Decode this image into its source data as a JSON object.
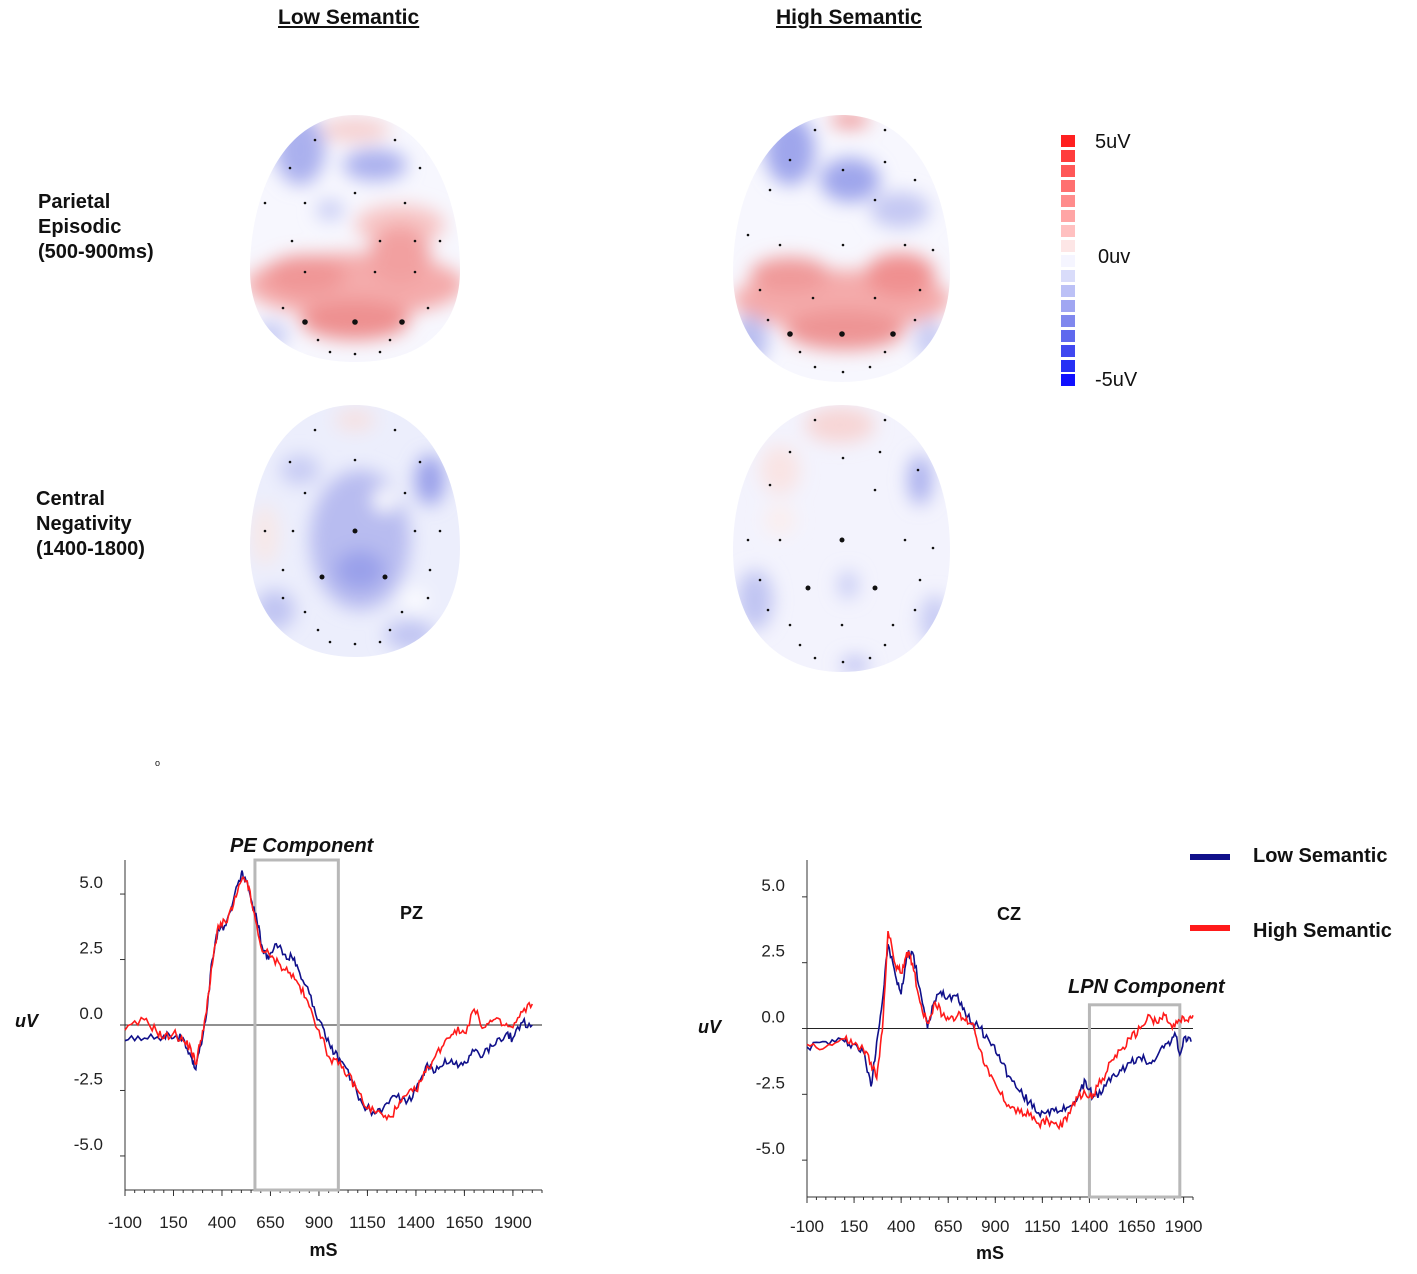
{
  "headers": {
    "low": "Low Semantic",
    "high": "High Semantic"
  },
  "rows": {
    "parietal": {
      "line1": "Parietal",
      "line2": "Episodic",
      "line3": "(500-900ms)"
    },
    "central": {
      "line1": "Central",
      "line2": "Negativity",
      "line3": "(1400-1800)"
    }
  },
  "colorbar": {
    "max": "5uV",
    "mid": "0uv",
    "min": "-5uV",
    "pos_color": "#ff1a1a",
    "neg_color": "#1a1aff"
  },
  "stray_mark": "o",
  "legend": {
    "low": "Low Semantic",
    "high": "High Semantic",
    "low_color": "#10108a",
    "high_color": "#ff1a1a"
  },
  "colors": {
    "box": "#b8b8b8",
    "axis": "#333333"
  },
  "chart_data": [
    {
      "type": "line",
      "title": "PZ",
      "annotation": "PE Component",
      "xlabel": "mS",
      "ylabel": "uV",
      "xlim": [
        -100,
        2050
      ],
      "ylim": [
        -6.3,
        6.3
      ],
      "xticks": [
        -100,
        150,
        400,
        650,
        900,
        1150,
        1400,
        1650,
        1900
      ],
      "xtick_labels": [
        "-100",
        "150",
        "400",
        "650",
        "900",
        "1150",
        "1400",
        "1650",
        "1900"
      ],
      "yticks": [
        5,
        2.5,
        0,
        -2.5,
        -5
      ],
      "ytick_labels": [
        "5.0",
        "2.5",
        "0.0",
        "-2.5",
        "-5.0"
      ],
      "box": {
        "x_start": 570,
        "x_end": 1000,
        "y_top": 6.3,
        "y_bottom": -6.3
      },
      "series": [
        {
          "name": "Low Semantic",
          "color": "#10108a",
          "points": [
            [
              -100,
              -0.6
            ],
            [
              0,
              -0.5
            ],
            [
              100,
              -0.4
            ],
            [
              150,
              -0.5
            ],
            [
              200,
              -0.5
            ],
            [
              240,
              -1.2
            ],
            [
              265,
              -1.7
            ],
            [
              290,
              -0.8
            ],
            [
              320,
              0.4
            ],
            [
              350,
              2.5
            ],
            [
              380,
              3.7
            ],
            [
              420,
              3.8
            ],
            [
              460,
              4.8
            ],
            [
              500,
              5.8
            ],
            [
              520,
              5.6
            ],
            [
              550,
              4.8
            ],
            [
              580,
              4.0
            ],
            [
              610,
              2.9
            ],
            [
              640,
              2.5
            ],
            [
              680,
              3.1
            ],
            [
              720,
              2.7
            ],
            [
              760,
              2.6
            ],
            [
              800,
              2.0
            ],
            [
              850,
              1.2
            ],
            [
              900,
              0.2
            ],
            [
              940,
              -0.6
            ],
            [
              980,
              -1.1
            ],
            [
              1020,
              -1.4
            ],
            [
              1080,
              -2.3
            ],
            [
              1130,
              -3.1
            ],
            [
              1180,
              -3.3
            ],
            [
              1230,
              -3.2
            ],
            [
              1290,
              -2.7
            ],
            [
              1350,
              -3.0
            ],
            [
              1400,
              -2.5
            ],
            [
              1450,
              -1.6
            ],
            [
              1500,
              -1.8
            ],
            [
              1550,
              -1.3
            ],
            [
              1600,
              -1.5
            ],
            [
              1650,
              -1.4
            ],
            [
              1700,
              -1.0
            ],
            [
              1750,
              -1.1
            ],
            [
              1800,
              -0.8
            ],
            [
              1860,
              -0.4
            ],
            [
              1900,
              -0.5
            ],
            [
              1950,
              0.1
            ],
            [
              2000,
              0.0
            ]
          ]
        },
        {
          "name": "High Semantic",
          "color": "#ff1a1a",
          "points": [
            [
              -100,
              -0.2
            ],
            [
              0,
              0.2
            ],
            [
              60,
              -0.2
            ],
            [
              100,
              -0.5
            ],
            [
              150,
              -0.3
            ],
            [
              200,
              -0.6
            ],
            [
              240,
              -0.9
            ],
            [
              265,
              -1.5
            ],
            [
              290,
              -0.6
            ],
            [
              320,
              0.5
            ],
            [
              350,
              2.3
            ],
            [
              380,
              3.8
            ],
            [
              420,
              3.9
            ],
            [
              460,
              4.6
            ],
            [
              500,
              5.5
            ],
            [
              530,
              5.5
            ],
            [
              560,
              4.4
            ],
            [
              600,
              3.0
            ],
            [
              650,
              2.6
            ],
            [
              700,
              2.3
            ],
            [
              750,
              2.0
            ],
            [
              800,
              1.5
            ],
            [
              850,
              0.7
            ],
            [
              900,
              -0.2
            ],
            [
              950,
              -1.2
            ],
            [
              1000,
              -1.5
            ],
            [
              1050,
              -1.9
            ],
            [
              1100,
              -2.5
            ],
            [
              1150,
              -3.2
            ],
            [
              1200,
              -3.3
            ],
            [
              1250,
              -3.6
            ],
            [
              1300,
              -3.2
            ],
            [
              1350,
              -2.7
            ],
            [
              1400,
              -2.5
            ],
            [
              1450,
              -1.8
            ],
            [
              1500,
              -1.2
            ],
            [
              1550,
              -0.6
            ],
            [
              1600,
              -0.2
            ],
            [
              1650,
              -0.3
            ],
            [
              1700,
              0.6
            ],
            [
              1750,
              -0.1
            ],
            [
              1800,
              0.2
            ],
            [
              1850,
              0.0
            ],
            [
              1900,
              -0.1
            ],
            [
              1950,
              0.5
            ],
            [
              2000,
              0.8
            ]
          ]
        }
      ]
    },
    {
      "type": "line",
      "title": "CZ",
      "annotation": "LPN Component",
      "xlabel": "mS",
      "ylabel": "uV",
      "xlim": [
        -100,
        1950
      ],
      "ylim": [
        -6.4,
        6.4
      ],
      "xticks": [
        -100,
        150,
        400,
        650,
        900,
        1150,
        1400,
        1650,
        1900
      ],
      "xtick_labels": [
        "-100",
        "150",
        "400",
        "650",
        "900",
        "1150",
        "1400",
        "1650",
        "1900"
      ],
      "yticks": [
        5,
        2.5,
        0,
        -2.5,
        -5
      ],
      "ytick_labels": [
        "5.0",
        "2.5",
        "0.0",
        "-2.5",
        "-5.0"
      ],
      "box": {
        "x_start": 1400,
        "x_end": 1880,
        "y_top": 0.9,
        "y_bottom": -6.4
      },
      "series": [
        {
          "name": "Low Semantic",
          "color": "#10108a",
          "points": [
            [
              -100,
              -0.7
            ],
            [
              0,
              -0.5
            ],
            [
              100,
              -0.5
            ],
            [
              150,
              -0.6
            ],
            [
              200,
              -0.9
            ],
            [
              240,
              -2.2
            ],
            [
              270,
              -0.5
            ],
            [
              300,
              1.0
            ],
            [
              330,
              3.2
            ],
            [
              370,
              2.0
            ],
            [
              400,
              1.3
            ],
            [
              430,
              2.8
            ],
            [
              460,
              2.9
            ],
            [
              500,
              1.5
            ],
            [
              540,
              0.0
            ],
            [
              570,
              0.9
            ],
            [
              610,
              1.4
            ],
            [
              650,
              1.2
            ],
            [
              700,
              1.3
            ],
            [
              740,
              0.6
            ],
            [
              780,
              0.2
            ],
            [
              820,
              0.0
            ],
            [
              870,
              -0.5
            ],
            [
              920,
              -1.0
            ],
            [
              970,
              -1.8
            ],
            [
              1030,
              -2.4
            ],
            [
              1080,
              -2.8
            ],
            [
              1130,
              -3.2
            ],
            [
              1180,
              -3.1
            ],
            [
              1230,
              -3.2
            ],
            [
              1280,
              -3.0
            ],
            [
              1340,
              -2.6
            ],
            [
              1380,
              -2.0
            ],
            [
              1420,
              -2.6
            ],
            [
              1470,
              -2.4
            ],
            [
              1520,
              -1.8
            ],
            [
              1570,
              -1.6
            ],
            [
              1620,
              -1.3
            ],
            [
              1670,
              -1.1
            ],
            [
              1720,
              -1.3
            ],
            [
              1770,
              -0.9
            ],
            [
              1820,
              -0.5
            ],
            [
              1860,
              -0.3
            ],
            [
              1880,
              -1.0
            ],
            [
              1910,
              -0.3
            ],
            [
              1940,
              -0.5
            ]
          ]
        },
        {
          "name": "High Semantic",
          "color": "#ff1a1a",
          "points": [
            [
              -100,
              -0.6
            ],
            [
              0,
              -0.7
            ],
            [
              100,
              -0.4
            ],
            [
              150,
              -0.6
            ],
            [
              200,
              -0.8
            ],
            [
              240,
              -1.3
            ],
            [
              270,
              -1.9
            ],
            [
              300,
              -0.1
            ],
            [
              330,
              3.7
            ],
            [
              370,
              2.4
            ],
            [
              400,
              2.1
            ],
            [
              430,
              2.9
            ],
            [
              460,
              2.5
            ],
            [
              500,
              1.0
            ],
            [
              540,
              0.2
            ],
            [
              580,
              1.0
            ],
            [
              620,
              0.5
            ],
            [
              660,
              0.4
            ],
            [
              700,
              0.5
            ],
            [
              740,
              0.3
            ],
            [
              780,
              0.2
            ],
            [
              820,
              -0.8
            ],
            [
              870,
              -1.8
            ],
            [
              920,
              -2.4
            ],
            [
              970,
              -2.9
            ],
            [
              1030,
              -3.2
            ],
            [
              1080,
              -3.3
            ],
            [
              1130,
              -3.6
            ],
            [
              1180,
              -3.5
            ],
            [
              1230,
              -3.7
            ],
            [
              1280,
              -3.5
            ],
            [
              1330,
              -2.6
            ],
            [
              1380,
              -2.5
            ],
            [
              1420,
              -2.5
            ],
            [
              1470,
              -1.9
            ],
            [
              1520,
              -1.2
            ],
            [
              1570,
              -0.8
            ],
            [
              1620,
              -0.4
            ],
            [
              1670,
              0.0
            ],
            [
              1720,
              0.5
            ],
            [
              1760,
              0.2
            ],
            [
              1800,
              0.5
            ],
            [
              1840,
              0.0
            ],
            [
              1880,
              0.3
            ],
            [
              1920,
              0.3
            ],
            [
              1950,
              0.5
            ]
          ]
        }
      ]
    }
  ]
}
